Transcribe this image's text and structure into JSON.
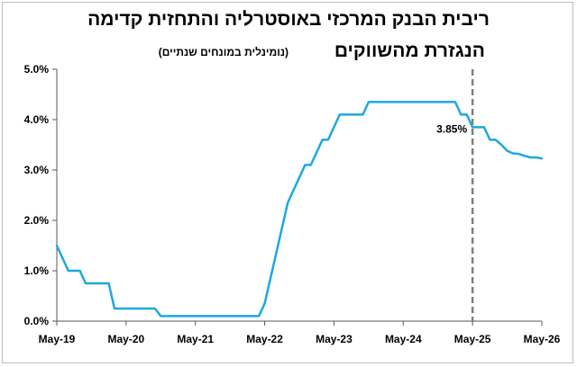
{
  "title_line1": "ריבית הבנק המרכזי באוסטרליה והתחזית קדימה",
  "title_line2": "הנגזרת מהשווקים",
  "subtitle": "(נומינלית במונחים שנתיים)",
  "chart_data": {
    "type": "line",
    "x_ticks": [
      "May-19",
      "May-20",
      "May-21",
      "May-22",
      "May-23",
      "May-24",
      "May-25",
      "May-26"
    ],
    "y_ticks": [
      "0.0%",
      "1.0%",
      "2.0%",
      "3.0%",
      "4.0%",
      "5.0%"
    ],
    "ylim": [
      0,
      5
    ],
    "xlim": [
      0,
      84
    ],
    "grid": false,
    "line_color": "#1ea7e1",
    "marker_color": "#7f7f7f",
    "vertical_marker_x": 72,
    "annotation": {
      "text": "3.85%",
      "x": 72,
      "y": 3.85
    },
    "series": [
      {
        "x": [
          0,
          1,
          2,
          3,
          4,
          5,
          6,
          7,
          8,
          9,
          10,
          11,
          12,
          13,
          14,
          15,
          16,
          17,
          18,
          19,
          20,
          21,
          22,
          23,
          24,
          25,
          26,
          27,
          28,
          29,
          30,
          31,
          32,
          33,
          34,
          35,
          36,
          37,
          38,
          39,
          40,
          41,
          42,
          43,
          44,
          45,
          46,
          47,
          48,
          49,
          50,
          51,
          52,
          53,
          54,
          55,
          56,
          57,
          58,
          59,
          60,
          61,
          62,
          63,
          64,
          65,
          66,
          67,
          68,
          69,
          70,
          71,
          72,
          73,
          74,
          75,
          76,
          77,
          78,
          79,
          80,
          81,
          82,
          83,
          84
        ],
        "values": [
          1.5,
          1.25,
          1.0,
          1.0,
          1.0,
          0.75,
          0.75,
          0.75,
          0.75,
          0.75,
          0.25,
          0.25,
          0.25,
          0.25,
          0.25,
          0.25,
          0.25,
          0.25,
          0.1,
          0.1,
          0.1,
          0.1,
          0.1,
          0.1,
          0.1,
          0.1,
          0.1,
          0.1,
          0.1,
          0.1,
          0.1,
          0.1,
          0.1,
          0.1,
          0.1,
          0.1,
          0.35,
          0.85,
          1.35,
          1.85,
          2.35,
          2.6,
          2.85,
          3.1,
          3.1,
          3.35,
          3.6,
          3.6,
          3.85,
          4.1,
          4.1,
          4.1,
          4.1,
          4.1,
          4.35,
          4.35,
          4.35,
          4.35,
          4.35,
          4.35,
          4.35,
          4.35,
          4.35,
          4.35,
          4.35,
          4.35,
          4.35,
          4.35,
          4.35,
          4.35,
          4.1,
          4.1,
          3.85,
          3.85,
          3.85,
          3.6,
          3.6,
          3.5,
          3.38,
          3.33,
          3.32,
          3.28,
          3.25,
          3.25,
          3.23
        ]
      }
    ]
  }
}
